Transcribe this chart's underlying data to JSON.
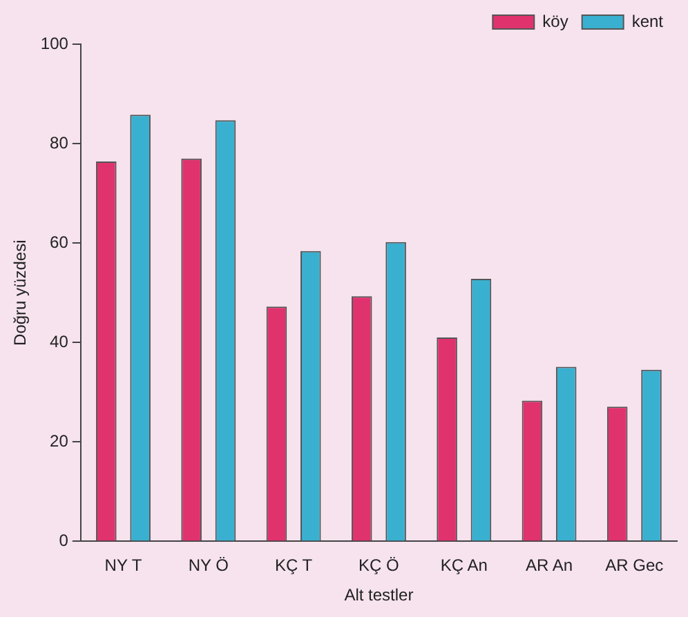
{
  "chart_data": {
    "type": "bar",
    "xlabel": "Alt testler",
    "ylabel": "Doğru yüzdesi",
    "categories": [
      "NY T",
      "NY Ö",
      "KÇ T",
      "KÇ Ö",
      "KÇ An",
      "AR An",
      "AR Gec"
    ],
    "series": [
      {
        "name": "köy",
        "color": "#e0336e",
        "values": [
          76.4,
          77,
          47.2,
          49.3,
          41,
          28.3,
          27.1
        ]
      },
      {
        "name": "kent",
        "color": "#3ab0d0",
        "values": [
          85.8,
          84.7,
          58.4,
          60.2,
          52.8,
          35.1,
          34.5
        ]
      }
    ],
    "ylim": [
      0,
      100
    ],
    "yticks": [
      0,
      20,
      40,
      60,
      80,
      100
    ],
    "grid": false,
    "legend": "top right"
  }
}
